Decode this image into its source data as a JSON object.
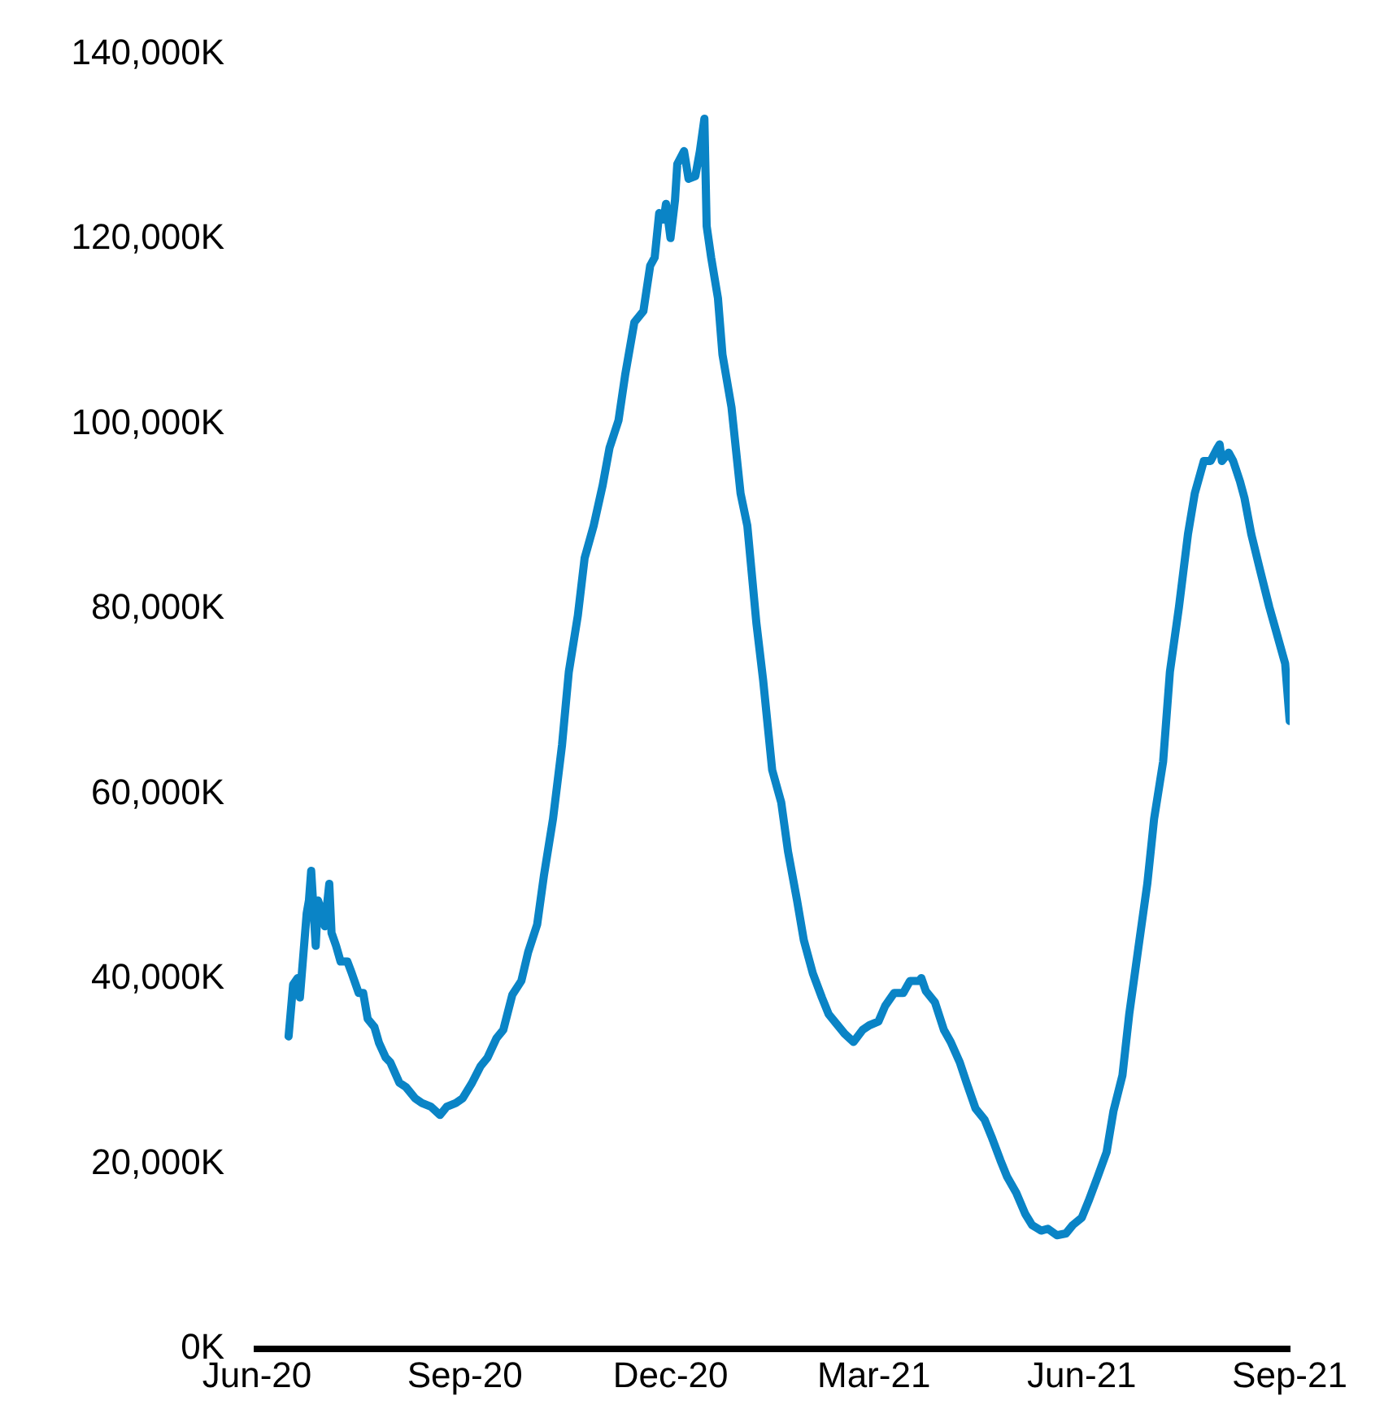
{
  "chart_data": {
    "type": "line",
    "color": "#0a84c6",
    "line_style": "solid",
    "marker": "none",
    "grid": false,
    "legend": false,
    "xlim": [
      "2020-06-01",
      "2021-09-01"
    ],
    "xticks": [
      {
        "value": "2020-06-01",
        "label": "Jun-20"
      },
      {
        "value": "2020-09-01",
        "label": "Sep-20"
      },
      {
        "value": "2020-12-01",
        "label": "Dec-20"
      },
      {
        "value": "2021-03-01",
        "label": "Mar-21"
      },
      {
        "value": "2021-06-01",
        "label": "Jun-21"
      },
      {
        "value": "2021-09-01",
        "label": "Sep-21"
      }
    ],
    "ylim": [
      0,
      140000
    ],
    "yticks": [
      {
        "value": 0,
        "label": "0K"
      },
      {
        "value": 20000,
        "label": "20,000K"
      },
      {
        "value": 40000,
        "label": "40,000K"
      },
      {
        "value": 60000,
        "label": "60,000K"
      },
      {
        "value": 80000,
        "label": "80,000K"
      },
      {
        "value": 100000,
        "label": "100,000K"
      },
      {
        "value": 120000,
        "label": "120,000K"
      },
      {
        "value": 140000,
        "label": "140,000K"
      }
    ],
    "x": [
      "2020-06-15",
      "2020-06-17",
      "2020-06-19",
      "2020-06-20",
      "2020-06-23",
      "2020-06-24",
      "2020-06-25",
      "2020-06-27",
      "2020-06-28",
      "2020-06-30",
      "2020-07-01",
      "2020-07-03",
      "2020-07-04",
      "2020-07-06",
      "2020-07-08",
      "2020-07-11",
      "2020-07-13",
      "2020-07-16",
      "2020-07-18",
      "2020-07-20",
      "2020-07-23",
      "2020-07-25",
      "2020-07-28",
      "2020-07-30",
      "2020-08-03",
      "2020-08-06",
      "2020-08-10",
      "2020-08-13",
      "2020-08-17",
      "2020-08-21",
      "2020-08-24",
      "2020-08-28",
      "2020-08-31",
      "2020-09-04",
      "2020-09-08",
      "2020-09-11",
      "2020-09-15",
      "2020-09-18",
      "2020-09-22",
      "2020-09-26",
      "2020-09-29",
      "2020-10-03",
      "2020-10-06",
      "2020-10-10",
      "2020-10-14",
      "2020-10-17",
      "2020-10-21",
      "2020-10-24",
      "2020-10-28",
      "2020-11-01",
      "2020-11-04",
      "2020-11-08",
      "2020-11-11",
      "2020-11-15",
      "2020-11-19",
      "2020-11-22",
      "2020-11-24",
      "2020-11-26",
      "2020-11-28",
      "2020-11-29",
      "2020-12-01",
      "2020-12-03",
      "2020-12-04",
      "2020-12-07",
      "2020-12-09",
      "2020-12-12",
      "2020-12-14",
      "2020-12-16",
      "2020-12-17",
      "2020-12-19",
      "2020-12-22",
      "2020-12-24",
      "2020-12-28",
      "2021-01-01",
      "2021-01-04",
      "2021-01-08",
      "2021-01-11",
      "2021-01-15",
      "2021-01-19",
      "2021-01-22",
      "2021-01-26",
      "2021-01-29",
      "2021-02-02",
      "2021-02-06",
      "2021-02-09",
      "2021-02-13",
      "2021-02-16",
      "2021-02-20",
      "2021-02-24",
      "2021-02-27",
      "2021-03-03",
      "2021-03-06",
      "2021-03-10",
      "2021-03-14",
      "2021-03-17",
      "2021-03-21",
      "2021-03-22",
      "2021-03-24",
      "2021-03-28",
      "2021-04-01",
      "2021-04-04",
      "2021-04-08",
      "2021-04-11",
      "2021-04-15",
      "2021-04-19",
      "2021-04-22",
      "2021-04-26",
      "2021-04-29",
      "2021-05-03",
      "2021-05-07",
      "2021-05-10",
      "2021-05-14",
      "2021-05-17",
      "2021-05-21",
      "2021-05-25",
      "2021-05-28",
      "2021-06-01",
      "2021-06-04",
      "2021-06-08",
      "2021-06-12",
      "2021-06-15",
      "2021-06-19",
      "2021-06-22",
      "2021-06-26",
      "2021-06-30",
      "2021-07-03",
      "2021-07-07",
      "2021-07-10",
      "2021-07-14",
      "2021-07-18",
      "2021-07-21",
      "2021-07-25",
      "2021-07-28",
      "2021-07-31",
      "2021-08-01",
      "2021-08-02",
      "2021-08-05",
      "2021-08-07",
      "2021-08-10",
      "2021-08-12",
      "2021-08-15",
      "2021-08-19",
      "2021-08-23",
      "2021-08-26",
      "2021-08-30",
      "2021-09-01"
    ],
    "values": [
      33800,
      39400,
      40100,
      38000,
      47100,
      48500,
      51700,
      43600,
      48500,
      47100,
      45700,
      50300,
      45000,
      43600,
      41900,
      41900,
      40600,
      38500,
      38500,
      35700,
      34800,
      33100,
      31500,
      31000,
      28800,
      28300,
      27100,
      26600,
      26200,
      25300,
      26200,
      26600,
      27100,
      28700,
      30600,
      31500,
      33600,
      34500,
      38300,
      39800,
      42900,
      45900,
      51200,
      57300,
      65300,
      73200,
      79300,
      85500,
      89000,
      93400,
      97400,
      100400,
      105400,
      111000,
      112200,
      117100,
      118000,
      122800,
      122100,
      123800,
      120100,
      124200,
      128100,
      129500,
      126500,
      126800,
      129500,
      133000,
      121400,
      118000,
      113600,
      107500,
      101800,
      92500,
      89000,
      78500,
      72300,
      62600,
      59100,
      53800,
      48500,
      44200,
      40600,
      38000,
      36200,
      35000,
      34100,
      33200,
      34500,
      35000,
      35400,
      37100,
      38500,
      38500,
      39800,
      39800,
      40100,
      38700,
      37500,
      34500,
      33200,
      31000,
      28800,
      26000,
      24800,
      23000,
      20400,
      18600,
      16900,
      14600,
      13400,
      12800,
      13000,
      12300,
      12500,
      13400,
      14200,
      16000,
      18600,
      21300,
      25700,
      29600,
      36200,
      43300,
      50300,
      57300,
      63500,
      73200,
      80200,
      88100,
      92500,
      96000,
      96000,
      97400,
      97800,
      96000,
      96900,
      96000,
      93800,
      92000,
      88100,
      84100,
      80200,
      77600,
      74100,
      67900
    ]
  }
}
